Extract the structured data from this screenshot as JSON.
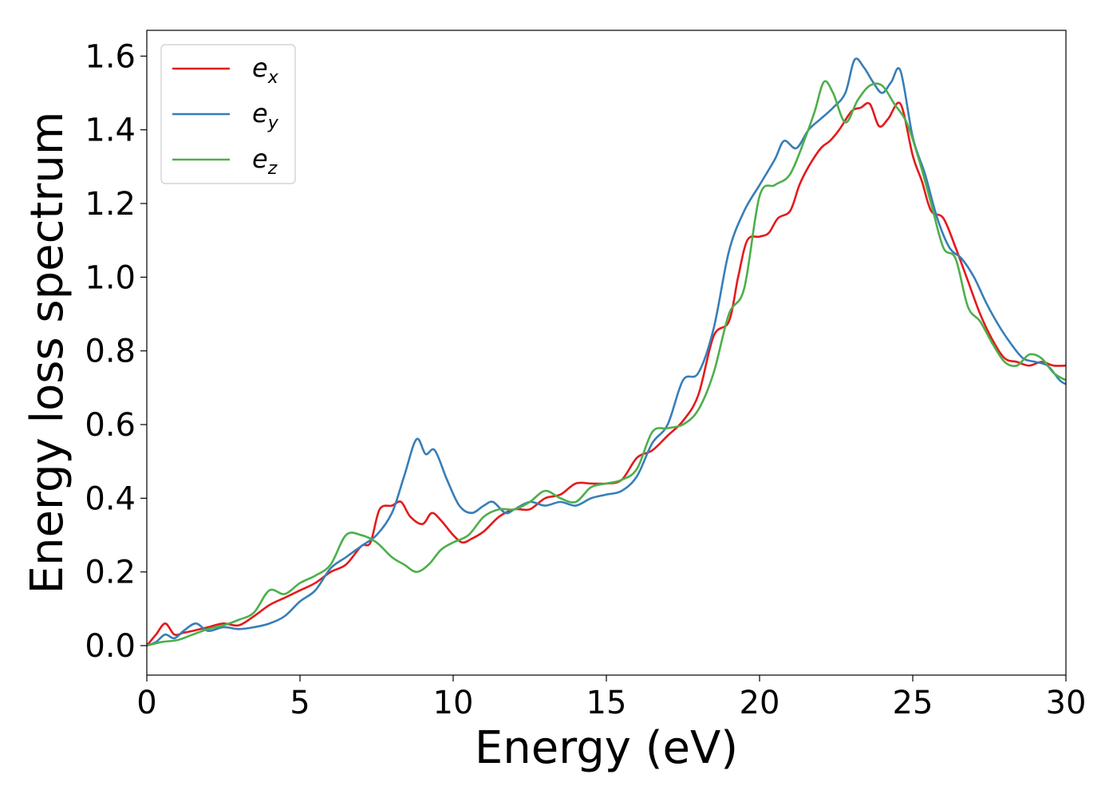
{
  "chart_data": {
    "type": "line",
    "title": "",
    "xlabel": "Energy (eV)",
    "ylabel": "Energy loss spectrum",
    "xlim": [
      0,
      30
    ],
    "ylim": [
      -0.08,
      1.67
    ],
    "xticks": [
      0,
      5,
      10,
      15,
      20,
      25,
      30
    ],
    "xtick_labels": [
      "0",
      "5",
      "10",
      "15",
      "20",
      "25",
      "30"
    ],
    "yticks": [
      0.0,
      0.2,
      0.4,
      0.6,
      0.8,
      1.0,
      1.2,
      1.4,
      1.6
    ],
    "ytick_labels": [
      "0.0",
      "0.2",
      "0.4",
      "0.6",
      "0.8",
      "1.0",
      "1.2",
      "1.4",
      "1.6"
    ],
    "grid": false,
    "legend_position": "top-left",
    "series": [
      {
        "name": "e",
        "sub": "x",
        "color": "#e41a1c",
        "x": [
          0,
          0.3,
          0.6,
          0.9,
          1.2,
          1.5,
          2,
          2.5,
          3,
          3.5,
          4,
          4.5,
          5,
          5.5,
          6,
          6.5,
          7,
          7.3,
          7.6,
          8,
          8.3,
          8.6,
          9,
          9.3,
          9.6,
          10,
          10.3,
          10.6,
          11,
          11.5,
          12,
          12.5,
          13,
          13.5,
          14,
          14.5,
          15,
          15.5,
          16,
          16.5,
          17,
          17.5,
          18,
          18.5,
          19,
          19.3,
          19.6,
          20,
          20.3,
          20.6,
          21,
          21.3,
          21.6,
          22,
          22.3,
          22.6,
          23,
          23.3,
          23.6,
          23.9,
          24.2,
          24.6,
          25,
          25.3,
          25.6,
          26,
          26.4,
          26.8,
          27.2,
          27.6,
          28,
          28.4,
          28.8,
          29.2,
          29.6,
          30
        ],
        "y": [
          0.0,
          0.03,
          0.06,
          0.03,
          0.035,
          0.04,
          0.05,
          0.06,
          0.055,
          0.08,
          0.11,
          0.13,
          0.15,
          0.17,
          0.2,
          0.22,
          0.27,
          0.28,
          0.37,
          0.38,
          0.39,
          0.35,
          0.33,
          0.36,
          0.34,
          0.3,
          0.28,
          0.29,
          0.31,
          0.35,
          0.37,
          0.37,
          0.4,
          0.41,
          0.44,
          0.44,
          0.44,
          0.45,
          0.51,
          0.53,
          0.57,
          0.61,
          0.68,
          0.84,
          0.88,
          1.0,
          1.1,
          1.11,
          1.12,
          1.16,
          1.18,
          1.25,
          1.3,
          1.35,
          1.37,
          1.4,
          1.45,
          1.46,
          1.47,
          1.41,
          1.43,
          1.47,
          1.33,
          1.26,
          1.18,
          1.16,
          1.08,
          0.99,
          0.9,
          0.83,
          0.78,
          0.77,
          0.76,
          0.77,
          0.76,
          0.76
        ]
      },
      {
        "name": "e",
        "sub": "y",
        "color": "#377eb8",
        "x": [
          0,
          0.3,
          0.6,
          0.9,
          1.2,
          1.6,
          2,
          2.5,
          3,
          3.5,
          4,
          4.5,
          5,
          5.5,
          6,
          6.5,
          7,
          7.5,
          8,
          8.4,
          8.8,
          9.1,
          9.4,
          9.8,
          10.2,
          10.6,
          11,
          11.3,
          11.7,
          12,
          12.5,
          13,
          13.5,
          14,
          14.5,
          15,
          15.5,
          16,
          16.5,
          17,
          17.5,
          18,
          18.5,
          19,
          19.5,
          20,
          20.5,
          20.8,
          21.2,
          21.6,
          22,
          22.4,
          22.8,
          23.1,
          23.4,
          23.7,
          24,
          24.3,
          24.6,
          25,
          25.4,
          25.8,
          26.2,
          26.6,
          27,
          27.4,
          27.8,
          28.2,
          28.6,
          29,
          29.4,
          29.8,
          30
        ],
        "y": [
          0.0,
          0.01,
          0.03,
          0.02,
          0.04,
          0.06,
          0.04,
          0.05,
          0.045,
          0.05,
          0.06,
          0.08,
          0.12,
          0.15,
          0.21,
          0.24,
          0.27,
          0.3,
          0.36,
          0.46,
          0.56,
          0.52,
          0.53,
          0.45,
          0.38,
          0.36,
          0.38,
          0.39,
          0.36,
          0.37,
          0.39,
          0.38,
          0.39,
          0.38,
          0.4,
          0.41,
          0.42,
          0.46,
          0.55,
          0.6,
          0.72,
          0.74,
          0.86,
          1.07,
          1.18,
          1.25,
          1.32,
          1.37,
          1.35,
          1.4,
          1.43,
          1.46,
          1.5,
          1.59,
          1.57,
          1.53,
          1.5,
          1.53,
          1.56,
          1.38,
          1.28,
          1.16,
          1.08,
          1.05,
          1.0,
          0.93,
          0.87,
          0.82,
          0.78,
          0.77,
          0.76,
          0.72,
          0.71
        ]
      },
      {
        "name": "e",
        "sub": "z",
        "color": "#4daf4a",
        "x": [
          0,
          0.5,
          1,
          1.5,
          2,
          2.5,
          3,
          3.5,
          4,
          4.5,
          5,
          5.5,
          6,
          6.5,
          7,
          7.5,
          8,
          8.4,
          8.8,
          9.2,
          9.6,
          10,
          10.5,
          11,
          11.5,
          12,
          12.5,
          13,
          13.5,
          14,
          14.5,
          15,
          15.5,
          16,
          16.5,
          17,
          17.5,
          18,
          18.5,
          19,
          19.5,
          20,
          20.5,
          21,
          21.5,
          21.8,
          22.1,
          22.4,
          22.8,
          23.2,
          23.6,
          24,
          24.4,
          24.8,
          25.2,
          25.6,
          26,
          26.4,
          26.8,
          27.2,
          27.6,
          28,
          28.4,
          28.8,
          29.2,
          29.6,
          30
        ],
        "y": [
          0.0,
          0.01,
          0.015,
          0.03,
          0.045,
          0.055,
          0.07,
          0.09,
          0.15,
          0.14,
          0.17,
          0.19,
          0.22,
          0.3,
          0.3,
          0.28,
          0.24,
          0.22,
          0.2,
          0.22,
          0.26,
          0.28,
          0.3,
          0.35,
          0.37,
          0.37,
          0.39,
          0.42,
          0.4,
          0.39,
          0.43,
          0.44,
          0.45,
          0.48,
          0.58,
          0.59,
          0.6,
          0.64,
          0.74,
          0.9,
          0.97,
          1.22,
          1.25,
          1.28,
          1.38,
          1.45,
          1.53,
          1.5,
          1.42,
          1.48,
          1.52,
          1.52,
          1.47,
          1.42,
          1.32,
          1.2,
          1.08,
          1.05,
          0.92,
          0.88,
          0.82,
          0.77,
          0.76,
          0.79,
          0.78,
          0.74,
          0.72
        ]
      }
    ]
  }
}
